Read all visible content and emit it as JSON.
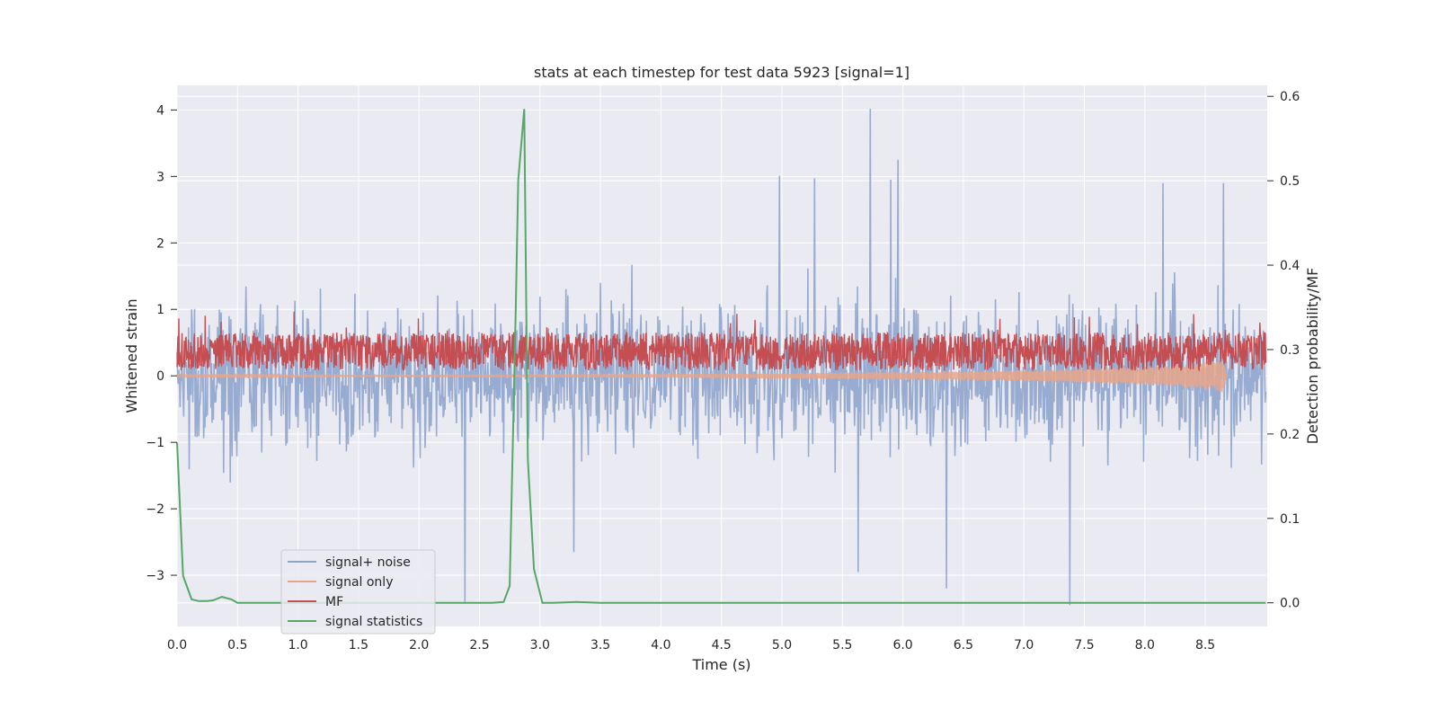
{
  "chart_data": {
    "type": "line",
    "title": "stats at each timestep for test data 5923 [signal=1]",
    "xlabel": "Time (s)",
    "ylabel": "Whitened strain",
    "y2label": "Detection probability/MF",
    "xlim": [
      0.0,
      9.0
    ],
    "ylim": [
      -3.77,
      4.37
    ],
    "y2lim": [
      -0.028,
      0.613
    ],
    "grid": true,
    "legend_position": "lower-left",
    "x_ticks": [
      "0.0",
      "0.5",
      "1.0",
      "1.5",
      "2.0",
      "2.5",
      "3.0",
      "3.5",
      "4.0",
      "4.5",
      "5.0",
      "5.5",
      "6.0",
      "6.5",
      "7.0",
      "7.5",
      "8.0",
      "8.5"
    ],
    "y_ticks": [
      "4",
      "3",
      "2",
      "1",
      "0",
      "−1",
      "−2",
      "−3"
    ],
    "y2_ticks": [
      "0.6",
      "0.5",
      "0.4",
      "0.3",
      "0.2",
      "0.1",
      "0.0"
    ],
    "series": [
      {
        "name": "signal+ noise",
        "axis": "left",
        "color": "#8fa4cc",
        "description_stats": {
          "typical_range": [
            -1.6,
            1.6
          ],
          "max": 4.0,
          "min": -3.45
        },
        "peaks": [
          {
            "x": 5.73,
            "y": 4.02
          },
          {
            "x": 5.96,
            "y": 3.25
          },
          {
            "x": 4.98,
            "y": 3.01
          },
          {
            "x": 5.27,
            "y": 2.97
          },
          {
            "x": 5.9,
            "y": 2.95
          },
          {
            "x": 8.15,
            "y": 2.9
          },
          {
            "x": 8.65,
            "y": 2.9
          },
          {
            "x": 7.38,
            "y": -3.45
          },
          {
            "x": 2.38,
            "y": -3.4
          },
          {
            "x": 6.36,
            "y": -3.2
          },
          {
            "x": 5.63,
            "y": -2.95
          },
          {
            "x": 3.28,
            "y": -2.65
          }
        ]
      },
      {
        "name": "signal only",
        "axis": "left",
        "color": "#e8a48a",
        "envelope": {
          "x": [
            0.0,
            2.0,
            4.0,
            5.5,
            6.5,
            7.0,
            7.5,
            8.0,
            8.3,
            8.5,
            8.65,
            8.68
          ],
          "amplitude": [
            0.01,
            0.02,
            0.03,
            0.05,
            0.07,
            0.09,
            0.11,
            0.14,
            0.17,
            0.21,
            0.26,
            0.0
          ]
        }
      },
      {
        "name": "MF",
        "axis": "right",
        "color": "#c44e52",
        "description_stats": {
          "baseline": 0.3,
          "typical_range": [
            0.27,
            0.34
          ],
          "max": 0.345
        }
      },
      {
        "name": "signal statistics",
        "axis": "right",
        "color": "#55a868",
        "x": [
          0.0,
          0.05,
          0.12,
          0.18,
          0.25,
          0.3,
          0.37,
          0.45,
          0.5,
          1.0,
          2.0,
          2.6,
          2.7,
          2.75,
          2.8,
          2.82,
          2.87,
          2.9,
          2.95,
          3.02,
          3.1,
          3.3,
          3.5,
          4.0,
          5.0,
          6.0,
          7.0,
          8.0,
          9.0
        ],
        "values": [
          0.19,
          0.032,
          0.004,
          0.002,
          0.002,
          0.003,
          0.007,
          0.004,
          0.0,
          0.0,
          0.0,
          0.0,
          0.001,
          0.02,
          0.35,
          0.5,
          0.585,
          0.17,
          0.04,
          0.0,
          0.0,
          0.001,
          0.0,
          0.0,
          0.0,
          0.0,
          0.0,
          0.0,
          0.0
        ]
      }
    ]
  },
  "legend": {
    "items": [
      {
        "label": "signal+ noise",
        "color": "#8fa4cc"
      },
      {
        "label": "signal only",
        "color": "#e8a48a"
      },
      {
        "label": "MF",
        "color": "#c44e52"
      },
      {
        "label": "signal statistics",
        "color": "#55a868"
      }
    ]
  }
}
